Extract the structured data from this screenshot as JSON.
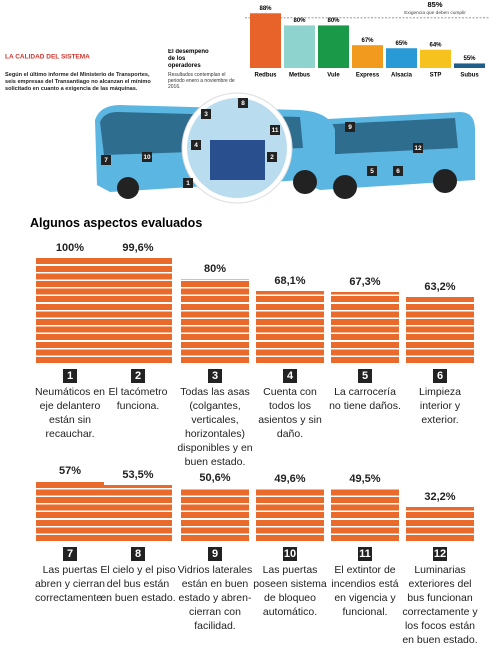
{
  "header": {
    "section": "LA CALIDAD DEL SISTEMA",
    "intro": "Según el último informe del Ministerio de Transportes, seis empresas del Transantiago no alcanzan el mínimo solicitado en cuanto a exigencia de las máquinas."
  },
  "chart_data": [
    {
      "type": "bar",
      "title": "El desempeño de los operadores",
      "subtitle": "Resultados contemplan el periodo enero a noviembre de 2016.",
      "categories": [
        "Redbus",
        "Metbus",
        "Vule",
        "Express",
        "Alsacia",
        "STP",
        "Subus"
      ],
      "values": [
        88,
        80,
        80,
        67,
        65,
        64,
        55
      ],
      "value_labels": [
        "88%",
        "80%",
        "80%",
        "67%",
        "65%",
        "64%",
        "55%"
      ],
      "colors": [
        "#e8632a",
        "#8fd3cf",
        "#1a9a48",
        "#f29a1e",
        "#2a9ad6",
        "#f6c21d",
        "#1f5f8a"
      ],
      "ylim": [
        52,
        100
      ],
      "threshold": {
        "value": 85,
        "label": "85%",
        "note": "Exigencia que deben cumplir"
      }
    },
    {
      "type": "bar",
      "title": "Algunos aspectos evaluados",
      "numbers": [
        "1",
        "2",
        "3",
        "4",
        "5",
        "6",
        "7",
        "8",
        "9",
        "10",
        "11",
        "12"
      ],
      "categories": [
        "Neumáticos en eje delantero están sin recauchar.",
        "El tacómetro funciona.",
        "Todas las asas (colgantes, verticales, horizontales) disponibles y en buen estado.",
        "Cuenta con todos los asientos y sin daño.",
        "La carrocería no tiene daños.",
        "Limpieza interior y exterior.",
        "Las puertas abren y cierran correctamente.",
        "El cielo y el piso del bus están en buen estado.",
        "Vidrios laterales están en buen estado y abren-cierran con facilidad.",
        "Las puertas poseen sistema de bloqueo automático.",
        "El extintor de incendios está en vigencia y funcional.",
        "Luminarias exteriores del bus funcionan correctamente y los focos están en buen estado."
      ],
      "values": [
        100,
        99.6,
        80,
        68.1,
        67.3,
        63.2,
        57,
        53.5,
        50.6,
        49.6,
        49.5,
        32.2
      ],
      "value_labels": [
        "100%",
        "99,6%",
        "80%",
        "68,1%",
        "67,3%",
        "63,2%",
        "57%",
        "53,5%",
        "50,6%",
        "49,6%",
        "49,5%",
        "32,2%"
      ],
      "color": "#ea6a2c",
      "ylim": [
        0,
        100
      ]
    }
  ]
}
